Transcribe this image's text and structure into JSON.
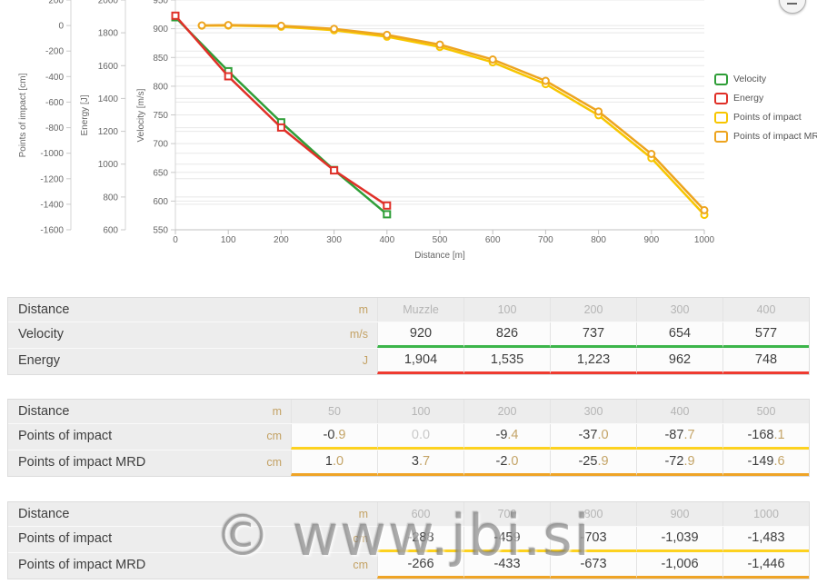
{
  "watermark": "© www.jbi.si",
  "chart_data": {
    "type": "line",
    "x_axis": {
      "title": "Distance [m]",
      "min": 0,
      "max": 1000,
      "step": 100
    },
    "y_axes": [
      {
        "title": "Points of impact [cm]",
        "min": -1600,
        "max": 200,
        "step": 200
      },
      {
        "title": "Energy [J]",
        "min": 600,
        "max": 2000,
        "step": 200
      },
      {
        "title": "Velocity [m/s]",
        "min": 550,
        "max": 950,
        "step": 50
      }
    ],
    "series": [
      {
        "name": "Velocity",
        "color": "#2f9e38",
        "marker": "square",
        "axis": 2,
        "x": [
          0,
          100,
          200,
          300,
          400
        ],
        "values": [
          920,
          826,
          737,
          654,
          577
        ]
      },
      {
        "name": "Energy",
        "color": "#e03028",
        "marker": "square",
        "axis": 1,
        "x": [
          0,
          100,
          200,
          300,
          400
        ],
        "values": [
          1904,
          1535,
          1223,
          962,
          748
        ]
      },
      {
        "name": "Points of impact",
        "color": "#f7c600",
        "marker": "circle",
        "axis": 0,
        "x": [
          50,
          100,
          200,
          300,
          400,
          500,
          600,
          700,
          800,
          900,
          1000
        ],
        "values": [
          -0.9,
          0,
          -9.4,
          -37,
          -87.7,
          -168.1,
          -288,
          -459,
          -703,
          -1039,
          -1483
        ]
      },
      {
        "name": "Points of impact MRD",
        "color": "#eda41f",
        "marker": "circle",
        "axis": 0,
        "x": [
          50,
          100,
          200,
          300,
          400,
          500,
          600,
          700,
          800,
          900,
          1000
        ],
        "values": [
          1,
          3.7,
          -2,
          -25.9,
          -72.9,
          -149.6,
          -266,
          -433,
          -673,
          -1006,
          -1446
        ]
      }
    ],
    "legend_position": "right"
  },
  "tables": [
    {
      "rows": [
        {
          "type": "header",
          "label": "Distance",
          "unit": "m",
          "values": [
            "Muzzle",
            "100",
            "200",
            "300",
            "400"
          ]
        },
        {
          "type": "data",
          "label": "Velocity",
          "unit": "m/s",
          "color": "#3cb54a",
          "values": [
            "920",
            "826",
            "737",
            "654",
            "577"
          ]
        },
        {
          "type": "data",
          "label": "Energy",
          "unit": "J",
          "color": "#ef3b30",
          "values": [
            "1,904",
            "1,535",
            "1,223",
            "962",
            "748"
          ]
        }
      ]
    },
    {
      "rows": [
        {
          "type": "header",
          "label": "Distance",
          "unit": "m",
          "values": [
            "50",
            "100",
            "200",
            "300",
            "400",
            "500"
          ]
        },
        {
          "type": "data",
          "label": "Points of impact",
          "unit": "cm",
          "color": "#fdd220",
          "muted": [
            1
          ],
          "values": [
            "-0.9",
            "0.0",
            "-9.4",
            "-37.0",
            "-87.7",
            "-168.1"
          ]
        },
        {
          "type": "data",
          "label": "Points of impact MRD",
          "unit": "cm",
          "color": "#efa426",
          "values": [
            "1.0",
            "3.7",
            "-2.0",
            "-25.9",
            "-72.9",
            "-149.6"
          ]
        }
      ]
    },
    {
      "rows": [
        {
          "type": "header",
          "label": "Distance",
          "unit": "m",
          "values": [
            "600",
            "700",
            "800",
            "900",
            "1000"
          ]
        },
        {
          "type": "data",
          "label": "Points of impact",
          "unit": "cm",
          "color": "#fdd220",
          "values": [
            "-288",
            "-459",
            "-703",
            "-1,039",
            "-1,483"
          ]
        },
        {
          "type": "data",
          "label": "Points of impact MRD",
          "unit": "cm",
          "color": "#efa426",
          "values": [
            "-266",
            "-433",
            "-673",
            "-1,006",
            "-1,446"
          ]
        }
      ]
    }
  ]
}
